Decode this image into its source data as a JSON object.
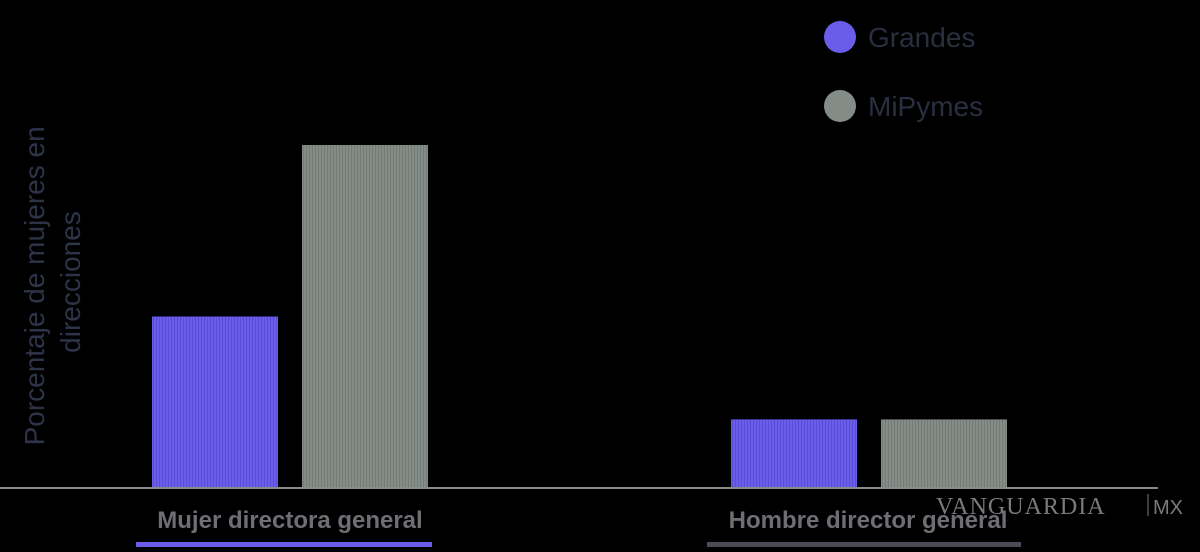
{
  "colors": {
    "background": "#000000",
    "grandes": "#6a5de9",
    "mipymes": "#848c88",
    "axis_title": "#2e3448",
    "tick_label": "#6d6f74",
    "legend_text": "#2a2f40",
    "baseline": "#8a8a8a",
    "underline_mujer": "#6a5de9",
    "underline_hombre": "#4a4b56",
    "watermark": "#7a7a7a"
  },
  "chart_data": {
    "type": "bar",
    "title": "",
    "xlabel": "",
    "ylabel": "Porcentaje de mujeres en direcciones",
    "ylabel_lines": [
      "Porcentaje de mujeres en",
      "direcciones"
    ],
    "categories": [
      "Mujer directora general",
      "Hombre director general"
    ],
    "series": [
      {
        "name": "Grandes",
        "values": [
          50,
          20
        ]
      },
      {
        "name": "MiPymes",
        "values": [
          100,
          20
        ]
      }
    ],
    "ylim": [
      0,
      100
    ],
    "grid": false,
    "legend_position": "top-right"
  },
  "watermark": {
    "main": "VANGUARDIA",
    "suffix": "MX"
  }
}
